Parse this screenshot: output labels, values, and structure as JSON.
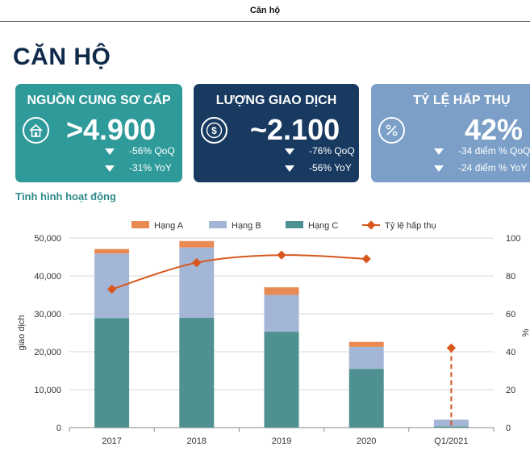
{
  "header": {
    "title": "Căn hộ"
  },
  "page_title": "CĂN HỘ",
  "cards": [
    {
      "title": "NGUỒN CUNG SƠ CẤP",
      "value": ">4.900",
      "icon": "house-icon",
      "changes": [
        "-56% QoQ",
        "-31% YoY"
      ],
      "color": "#2f9a9a"
    },
    {
      "title": "LƯỢNG GIAO DỊCH",
      "value": "~2.100",
      "icon": "dollar-coin-icon",
      "changes": [
        "-76% QoQ",
        "-56% YoY"
      ],
      "color": "#183a60"
    },
    {
      "title": "TỶ LỆ HẤP THỤ",
      "value": "42%",
      "icon": "percent-icon",
      "changes": [
        "-34 điểm % QoQ",
        "-24 điểm % YoY"
      ],
      "color": "#7b9fc7"
    }
  ],
  "section_title": "Tình hình hoạt động",
  "chart_data": {
    "type": "bar",
    "stacked": true,
    "categories": [
      "2017",
      "2018",
      "2019",
      "2020",
      "Q1/2021"
    ],
    "series": [
      {
        "name": "Hạng C",
        "values": [
          28900,
          29000,
          25300,
          15500,
          300
        ],
        "color": "#4e9190"
      },
      {
        "name": "Hạng B",
        "values": [
          17000,
          18500,
          9700,
          5800,
          1800
        ],
        "color": "#a4b6d6"
      },
      {
        "name": "Hạng A",
        "values": [
          1200,
          1700,
          2000,
          1300,
          0
        ],
        "color": "#e98a53"
      }
    ],
    "line_series": {
      "name": "Tỷ lệ hấp thụ",
      "axis": "right",
      "color": "#d9571e",
      "values": [
        73,
        87,
        91,
        89,
        42
      ]
    },
    "legend_order": [
      "Hạng A",
      "Hạng B",
      "Hạng C",
      "Tỷ lệ hấp thụ"
    ],
    "legend_position": "top",
    "ylabel": "giao dịch",
    "y2label": "%",
    "ylim": [
      0,
      50000
    ],
    "y2lim": [
      0,
      100
    ],
    "yticks": [
      "0",
      "10,000",
      "20,000",
      "30,000",
      "40,000",
      "50,000"
    ],
    "y2ticks": [
      "0",
      "20",
      "40",
      "60",
      "80",
      "100"
    ],
    "grid": true
  }
}
